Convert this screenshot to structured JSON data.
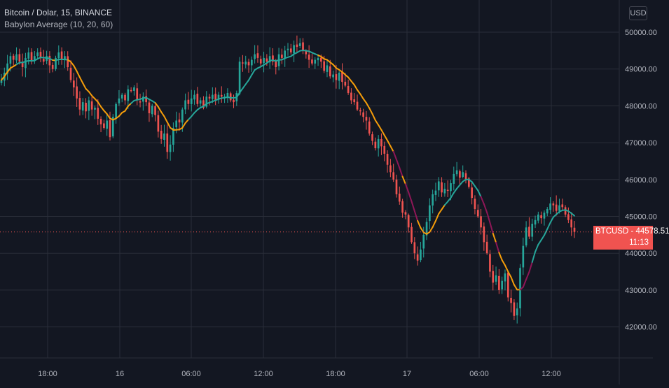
{
  "legend": {
    "title": "Bitcoin / Dolar, 15, BINANCE",
    "indicator": "Babylon Average (10, 20, 60)"
  },
  "currency_button": "USD",
  "price_tag": {
    "label": "BTCUSD",
    "separator": " - ",
    "price": "44578.51",
    "countdown": "11:13"
  },
  "colors": {
    "background": "#131722",
    "grid": "#2a2e39",
    "up": "#26a69a",
    "down": "#ef5350",
    "ma_orange": "#f59d0a",
    "ma_teal": "#26a69a",
    "ma_maroon": "#8e1757",
    "axis_text": "#b2b5be",
    "price_tag": "#f05350"
  },
  "chart_data": {
    "type": "candlestick",
    "ylim": [
      41300,
      50700
    ],
    "y_ticks": [
      "42000.00",
      "43000.00",
      "44000.00",
      "45000.00",
      "46000.00",
      "47000.00",
      "48000.00",
      "49000.00",
      "50000.00"
    ],
    "x_ticks": [
      "18:00",
      "16",
      "06:00",
      "12:00",
      "18:00",
      "17",
      "06:00",
      "12:00"
    ],
    "last_price": 44578.51,
    "closes": [
      48700,
      48900,
      49150,
      49350,
      49250,
      49400,
      49200,
      49050,
      49300,
      49450,
      49200,
      49350,
      49450,
      49300,
      49200,
      49350,
      49100,
      49000,
      49300,
      49450,
      49250,
      49350,
      49050,
      48700,
      48500,
      48200,
      47900,
      48100,
      47850,
      48150,
      47900,
      47950,
      47650,
      47500,
      47400,
      47600,
      47150,
      47700,
      48050,
      48200,
      48300,
      48150,
      48450,
      48400,
      48500,
      48150,
      48100,
      48250,
      48100,
      47800,
      48000,
      47750,
      47300,
      47100,
      47250,
      46750,
      46950,
      47400,
      47600,
      47550,
      47900,
      48150,
      48050,
      48200,
      48300,
      48050,
      48150,
      47950,
      48250,
      48200,
      48300,
      48150,
      48300,
      48250,
      48250,
      48350,
      48150,
      48100,
      48350,
      49200,
      49150,
      49200,
      49100,
      49250,
      49400,
      49300,
      49150,
      49300,
      49200,
      49350,
      49200,
      49050,
      49400,
      49300,
      49500,
      49550,
      49450,
      49650,
      49600,
      49700,
      49500,
      49400,
      49250,
      49150,
      49250,
      49300,
      49200,
      48950,
      49100,
      48800,
      48850,
      48700,
      48900,
      48650,
      48550,
      48350,
      48150,
      48100,
      47900,
      47850,
      47700,
      47600,
      47250,
      47050,
      46850,
      47100,
      46900,
      46700,
      46400,
      46200,
      46000,
      45600,
      45400,
      45100,
      45050,
      44700,
      44300,
      44000,
      43800,
      44100,
      44500,
      44850,
      45300,
      45600,
      45700,
      45950,
      45650,
      45750,
      45700,
      45900,
      46150,
      46250,
      46050,
      46200,
      46000,
      45800,
      45500,
      45200,
      45000,
      44700,
      44300,
      44000,
      43500,
      43200,
      43400,
      43000,
      43250,
      43450,
      42800,
      42650,
      42300,
      42500,
      43600,
      44200,
      44700,
      44450,
      44800,
      44900,
      45050,
      44950,
      45100,
      45200,
      45350,
      45300,
      45150,
      45300,
      45250,
      45050,
      44900,
      44700,
      44580
    ]
  }
}
